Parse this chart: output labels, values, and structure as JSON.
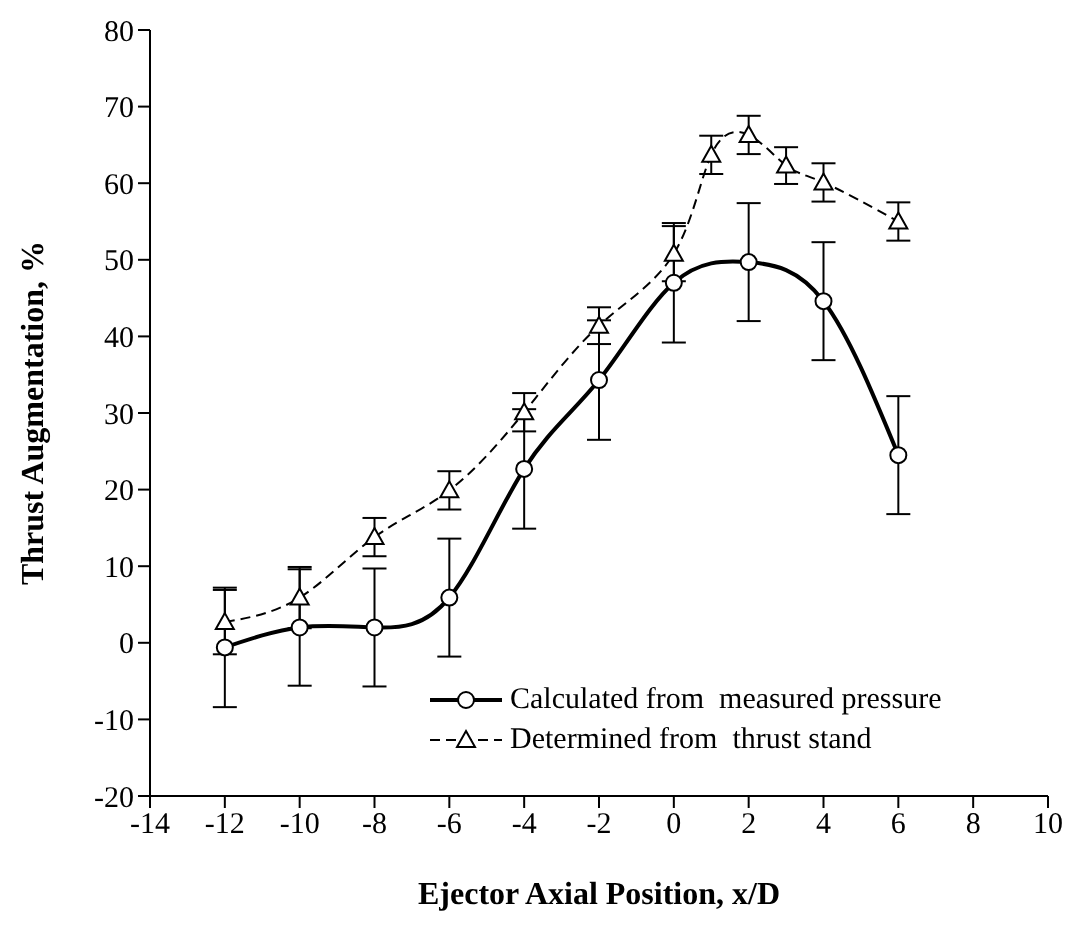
{
  "chart_data": {
    "type": "line",
    "xlabel": "Ejector Axial Position, x/D",
    "ylabel": "Thrust Augmentation, %",
    "xlim": [
      -14,
      10
    ],
    "xticks": [
      -14,
      -12,
      -10,
      -8,
      -6,
      -4,
      -2,
      0,
      2,
      4,
      6,
      8,
      10
    ],
    "ylim": [
      -20,
      80
    ],
    "yticks": [
      -20,
      -10,
      0,
      10,
      20,
      30,
      40,
      50,
      60,
      70,
      80
    ],
    "grid": false,
    "legend": "bottom right",
    "series": [
      {
        "name": "Calculated from  measured pressure",
        "color": "#000000",
        "marker": "circle",
        "line_style": "solid",
        "x": [
          -12,
          -10,
          -8,
          -6,
          -4,
          -2,
          0,
          2,
          4,
          6
        ],
        "values": [
          -0.6,
          2.0,
          2.0,
          5.9,
          22.7,
          34.3,
          47.0,
          49.7,
          44.6,
          24.5
        ],
        "errors": [
          7.8,
          7.6,
          7.7,
          7.7,
          7.8,
          7.8,
          7.8,
          7.7,
          7.7,
          7.7
        ]
      },
      {
        "name": "Determined from  thrust stand",
        "color": "#000000",
        "marker": "triangle",
        "line_style": "dashed",
        "x": [
          -12,
          -10,
          -8,
          -6,
          -4,
          -2,
          0,
          1,
          2,
          3,
          4,
          6
        ],
        "values": [
          2.7,
          5.9,
          13.8,
          19.9,
          30.1,
          41.4,
          50.8,
          63.7,
          66.3,
          62.3,
          60.1,
          55.0
        ],
        "errors": [
          4.2,
          4,
          2.5,
          2.5,
          2.5,
          2.4,
          3.6,
          2.5,
          2.5,
          2.4,
          2.5,
          2.5
        ]
      }
    ]
  }
}
